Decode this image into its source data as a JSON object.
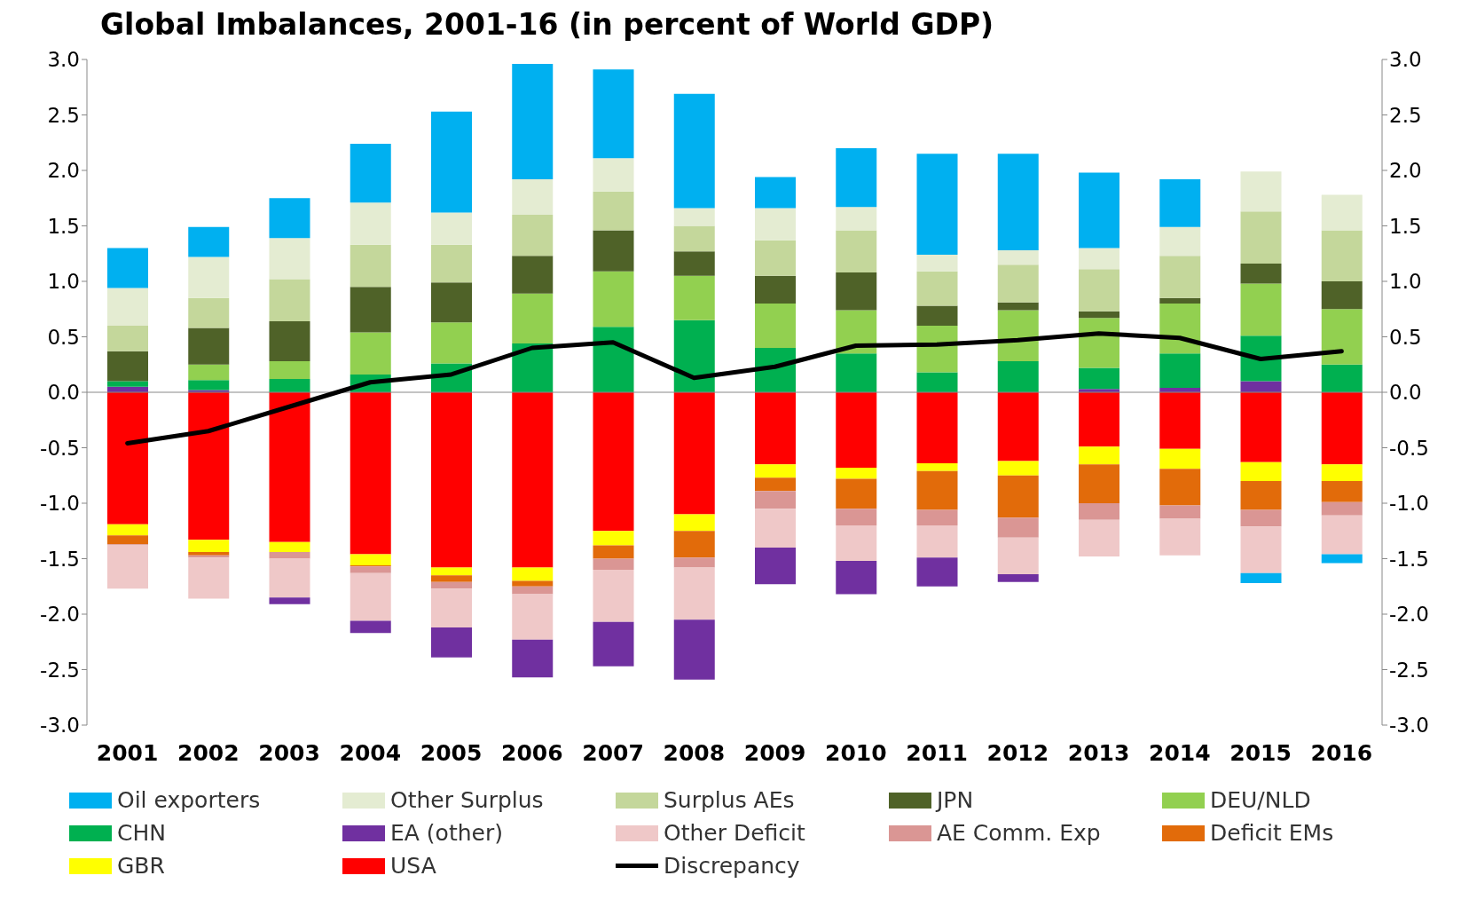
{
  "chart_data": {
    "type": "bar",
    "title": "Global Imbalances, 2001-16 (in percent of World GDP)",
    "stacked": true,
    "legend": "bottom",
    "marker": "none",
    "line_style": "solid",
    "categories": [
      "2001",
      "2002",
      "2003",
      "2004",
      "2005",
      "2006",
      "2007",
      "2008",
      "2009",
      "2010",
      "2011",
      "2012",
      "2013",
      "2014",
      "2015",
      "2016"
    ],
    "ylim": [
      -3,
      3
    ],
    "yticks": [
      {
        "value": -3,
        "label": "-3.0"
      },
      {
        "value": -2.5,
        "label": "-2.5"
      },
      {
        "value": -2,
        "label": "-2.0"
      },
      {
        "value": -1.5,
        "label": "-1.5"
      },
      {
        "value": -1,
        "label": "-1.0"
      },
      {
        "value": -0.5,
        "label": "-0.5"
      },
      {
        "value": 0,
        "label": "0.0"
      },
      {
        "value": 0.5,
        "label": "0.5"
      },
      {
        "value": 1,
        "label": "1.0"
      },
      {
        "value": 1.5,
        "label": "1.5"
      },
      {
        "value": 2,
        "label": "2.0"
      },
      {
        "value": 2.5,
        "label": "2.5"
      },
      {
        "value": 3,
        "label": "3.0"
      }
    ],
    "y2lim": [
      -3,
      3
    ],
    "y2ticks": [
      {
        "value": -3,
        "label": "-3.0"
      },
      {
        "value": -2.5,
        "label": "-2.5"
      },
      {
        "value": -2,
        "label": "-2.0"
      },
      {
        "value": -1.5,
        "label": "-1.5"
      },
      {
        "value": -1,
        "label": "-1.0"
      },
      {
        "value": -0.5,
        "label": "-0.5"
      },
      {
        "value": 0,
        "label": "0.0"
      },
      {
        "value": 0.5,
        "label": "0.5"
      },
      {
        "value": 1,
        "label": "1.0"
      },
      {
        "value": 1.5,
        "label": "1.5"
      },
      {
        "value": 2,
        "label": "2.0"
      },
      {
        "value": 2.5,
        "label": "2.5"
      },
      {
        "value": 3,
        "label": "3.0"
      }
    ],
    "series": [
      {
        "name": "USA",
        "color": "#ff0000",
        "values": [
          -1.19,
          -1.33,
          -1.35,
          -1.46,
          -1.58,
          -1.58,
          -1.25,
          -1.1,
          -0.65,
          -0.68,
          -0.64,
          -0.62,
          -0.49,
          -0.51,
          -0.63,
          -0.65
        ]
      },
      {
        "name": "GBR",
        "color": "#ffff00",
        "values": [
          -0.1,
          -0.11,
          -0.09,
          -0.1,
          -0.07,
          -0.12,
          -0.13,
          -0.15,
          -0.12,
          -0.1,
          -0.07,
          -0.13,
          -0.16,
          -0.18,
          -0.17,
          -0.15
        ]
      },
      {
        "name": "Deficit EMs",
        "color": "#e26b0a",
        "values": [
          -0.08,
          -0.03,
          0,
          -0.01,
          -0.06,
          -0.05,
          -0.12,
          -0.24,
          -0.12,
          -0.27,
          -0.35,
          -0.38,
          -0.35,
          -0.33,
          -0.26,
          -0.19
        ]
      },
      {
        "name": "AE Comm. Exp",
        "color": "#da9694",
        "values": [
          -0.01,
          -0.02,
          -0.06,
          -0.06,
          -0.06,
          -0.07,
          -0.1,
          -0.09,
          -0.16,
          -0.15,
          -0.14,
          -0.18,
          -0.15,
          -0.12,
          -0.15,
          -0.12
        ]
      },
      {
        "name": "Other Deficit",
        "color": "#efc8c8",
        "values": [
          -0.39,
          -0.37,
          -0.35,
          -0.43,
          -0.35,
          -0.41,
          -0.47,
          -0.47,
          -0.35,
          -0.32,
          -0.29,
          -0.33,
          -0.33,
          -0.33,
          -0.42,
          -0.35
        ]
      },
      {
        "name": "EA (other)",
        "color": "#7030a0",
        "values": [
          0.05,
          0.02,
          -0.06,
          -0.11,
          -0.27,
          -0.34,
          -0.4,
          -0.54,
          -0.33,
          -0.3,
          -0.26,
          -0.07,
          0.03,
          0.04,
          0.1,
          0
        ]
      },
      {
        "name": "CHN",
        "color": "#00b050",
        "values": [
          0.05,
          0.09,
          0.12,
          0.16,
          0.26,
          0.44,
          0.59,
          0.65,
          0.4,
          0.35,
          0.18,
          0.28,
          0.19,
          0.31,
          0.41,
          0.25
        ]
      },
      {
        "name": "DEU/NLD",
        "color": "#92d050",
        "values": [
          0,
          0.14,
          0.16,
          0.38,
          0.37,
          0.45,
          0.5,
          0.4,
          0.4,
          0.39,
          0.42,
          0.46,
          0.45,
          0.45,
          0.47,
          0.5
        ]
      },
      {
        "name": "JPN",
        "color": "#4f6228",
        "values": [
          0.27,
          0.33,
          0.36,
          0.41,
          0.36,
          0.34,
          0.37,
          0.22,
          0.25,
          0.34,
          0.18,
          0.07,
          0.06,
          0.05,
          0.18,
          0.25
        ]
      },
      {
        "name": "Surplus AEs",
        "color": "#c4d79b",
        "values": [
          0.23,
          0.27,
          0.38,
          0.38,
          0.34,
          0.37,
          0.35,
          0.23,
          0.32,
          0.38,
          0.31,
          0.34,
          0.38,
          0.38,
          0.47,
          0.46
        ]
      },
      {
        "name": "Other Surplus",
        "color": "#e4ecd2",
        "values": [
          0.34,
          0.37,
          0.37,
          0.38,
          0.29,
          0.32,
          0.3,
          0.16,
          0.29,
          0.21,
          0.15,
          0.13,
          0.19,
          0.26,
          0.36,
          0.32
        ]
      },
      {
        "name": "Oil exporters",
        "color": "#00b0f0",
        "values": [
          0.36,
          0.27,
          0.36,
          0.53,
          0.91,
          1.04,
          0.8,
          1.03,
          0.28,
          0.53,
          0.91,
          0.87,
          0.68,
          0.43,
          -0.09,
          -0.08
        ]
      },
      {
        "name": "Discrepancy",
        "type": "line",
        "color": "#000000",
        "values": [
          -0.46,
          -0.35,
          -0.13,
          0.09,
          0.16,
          0.4,
          0.45,
          0.13,
          0.23,
          0.42,
          0.43,
          0.47,
          0.53,
          0.49,
          0.3,
          0.37
        ]
      }
    ]
  }
}
